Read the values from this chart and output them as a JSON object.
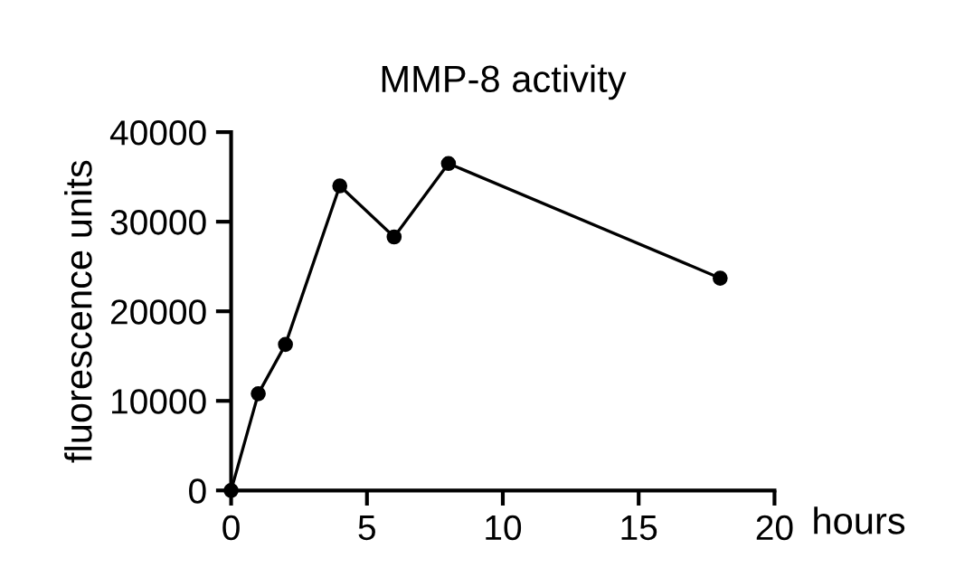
{
  "chart_data": {
    "type": "line",
    "title": "MMP-8 activity",
    "xlabel": "hours",
    "ylabel": "fluorescence units",
    "x": [
      0,
      1,
      2,
      4,
      6,
      8,
      18
    ],
    "series": [
      {
        "color": "#000000",
        "values": [
          0,
          10800,
          16300,
          34000,
          28300,
          36500,
          23700
        ]
      }
    ],
    "xlim": [
      0,
      20
    ],
    "xticks": [
      0,
      5,
      10,
      15,
      20
    ],
    "ylim": [
      0,
      40000
    ],
    "yticks": [
      0,
      10000,
      20000,
      30000,
      40000
    ],
    "marker": "circle",
    "line_style": "solid",
    "grid": false,
    "legend": false
  }
}
